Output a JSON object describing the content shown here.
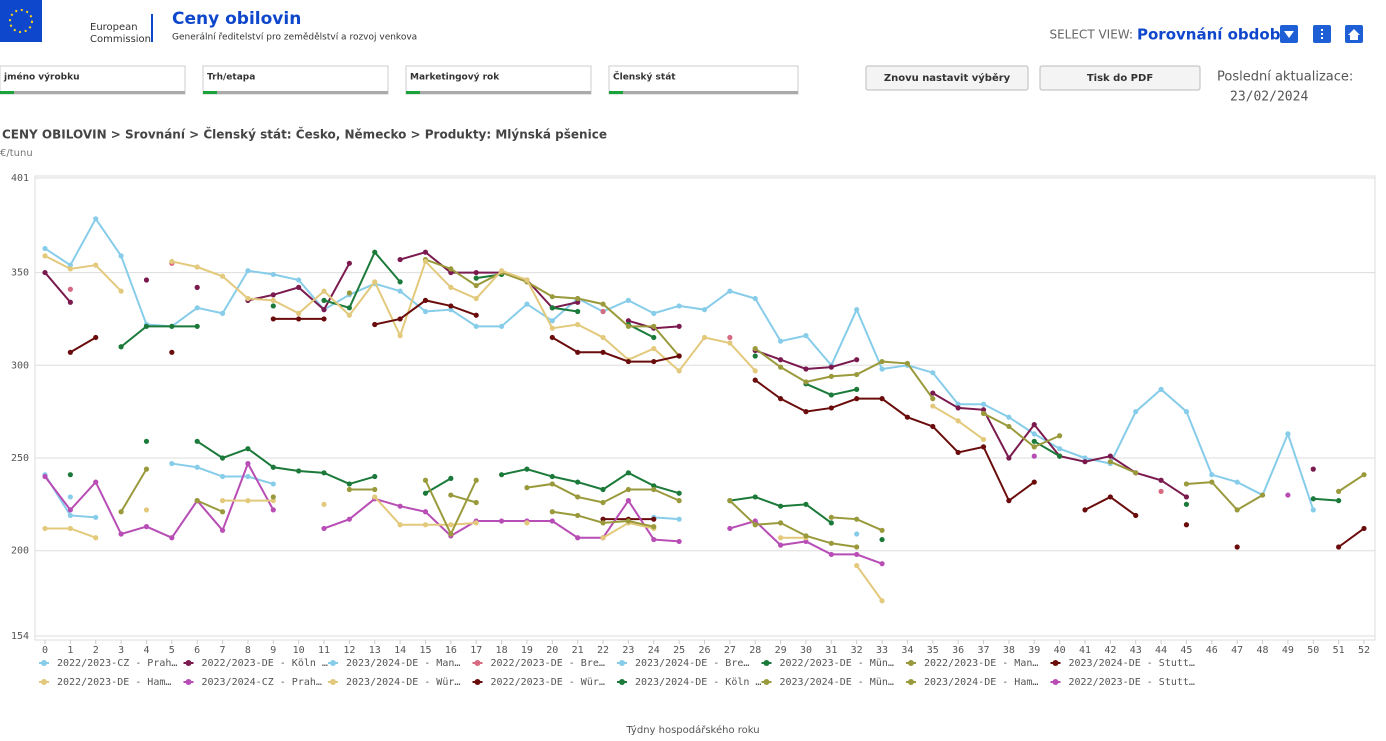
{
  "header": {
    "org_line1": "European",
    "org_line2": "Commission",
    "title": "Ceny obilovin",
    "subtitle": "Generální ředitelství pro zemědělství a rozvoj venkova",
    "select_label": "SELECT VIEW:",
    "select_value": "Porovnání období"
  },
  "filters": [
    "jméno výrobku",
    "Trh/etapa",
    "Marketingový rok",
    "Členský stát"
  ],
  "buttons": {
    "reset": "Znovu nastavit výběry",
    "print": "Tisk do PDF"
  },
  "update": {
    "label": "Poslední aktualizace:",
    "date": "23/02/2024"
  },
  "breadcrumb": "CENY OBILOVIN > Srovnání > Členský stát: Česko, Německo > Produkty: Mlýnská pšenice",
  "unit": "€/tunu",
  "chart_data": {
    "type": "line",
    "x_label": "Týdny hospodářského roku",
    "x": [
      0,
      1,
      2,
      3,
      4,
      5,
      6,
      7,
      8,
      9,
      10,
      11,
      12,
      13,
      14,
      15,
      16,
      17,
      18,
      19,
      20,
      21,
      22,
      23,
      24,
      25,
      26,
      27,
      28,
      29,
      30,
      31,
      32,
      33,
      34,
      35,
      36,
      37,
      38,
      39,
      40,
      41,
      42,
      43,
      44,
      45,
      46,
      47,
      48,
      49,
      50,
      51,
      52
    ],
    "xlim": [
      0,
      52
    ],
    "xticks": [
      0,
      1,
      2,
      3,
      4,
      5,
      6,
      7,
      8,
      9,
      10,
      11,
      12,
      13,
      14,
      15,
      16,
      17,
      18,
      19,
      20,
      21,
      22,
      23,
      24,
      25,
      26,
      27,
      28,
      29,
      30,
      31,
      32,
      33,
      34,
      35,
      36,
      37,
      38,
      39,
      40,
      41,
      42,
      43,
      44,
      45,
      46,
      47,
      48,
      49,
      50,
      51,
      52
    ],
    "ylim": [
      154,
      401
    ],
    "yticks": [
      154,
      200,
      250,
      300,
      350,
      401
    ],
    "grid": true,
    "series": [
      {
        "name": "2022/2023-CZ - Prah…",
        "color": "#87cdea",
        "values": [
          363,
          354,
          379,
          359,
          322,
          321,
          331,
          328,
          351,
          349,
          346,
          330,
          338,
          344,
          340,
          329,
          330,
          321,
          321,
          333,
          324,
          336,
          329,
          335,
          328,
          332,
          330,
          340,
          336,
          313,
          316,
          300,
          330,
          298,
          300,
          296,
          279,
          279,
          272,
          263,
          255,
          250,
          247,
          275,
          287,
          275,
          241,
          237,
          230,
          263,
          222,
          null,
          null
        ]
      },
      {
        "name": "2022/2023-DE - Köln …",
        "color": "#7a1a4e",
        "values": [
          350,
          334,
          null,
          null,
          346,
          null,
          342,
          null,
          335,
          338,
          342,
          330,
          355,
          null,
          357,
          361,
          350,
          350,
          350,
          346,
          331,
          334,
          null,
          324,
          320,
          321,
          null,
          null,
          308,
          303,
          298,
          299,
          303,
          null,
          null,
          285,
          277,
          276,
          250,
          268,
          251,
          248,
          251,
          242,
          238,
          229,
          null,
          null,
          null,
          null,
          244,
          null,
          null
        ]
      },
      {
        "name": "2023/2024-DE - Man…",
        "color": "#87cdea",
        "values": [
          241,
          219,
          218,
          null,
          null,
          247,
          245,
          240,
          240,
          236,
          null,
          null,
          null,
          null,
          null,
          null,
          null,
          null,
          null,
          null,
          null,
          null,
          null,
          null,
          218,
          217,
          null,
          null,
          null,
          null,
          null,
          null,
          209,
          null,
          null,
          null,
          null,
          null,
          null,
          null,
          null,
          null,
          null,
          null,
          null,
          null,
          null,
          null,
          null,
          null,
          null,
          null,
          null
        ]
      },
      {
        "name": "2022/2023-DE - Bre…",
        "color": "#d76a82",
        "values": [
          null,
          341,
          null,
          null,
          null,
          355,
          null,
          null,
          null,
          null,
          null,
          null,
          null,
          null,
          null,
          null,
          null,
          null,
          null,
          null,
          null,
          null,
          329,
          null,
          null,
          null,
          null,
          315,
          null,
          null,
          null,
          null,
          null,
          null,
          null,
          null,
          null,
          null,
          null,
          null,
          null,
          null,
          null,
          null,
          232,
          null,
          null,
          null,
          null,
          null,
          null,
          null,
          null
        ]
      },
      {
        "name": "2023/2024-DE - Bre…",
        "color": "#87cdea",
        "values": [
          null,
          229,
          null,
          null,
          null,
          null,
          null,
          null,
          null,
          null,
          null,
          null,
          null,
          null,
          null,
          null,
          null,
          null,
          null,
          null,
          null,
          null,
          null,
          null,
          null,
          null,
          null,
          null,
          null,
          null,
          null,
          null,
          null,
          null,
          null,
          null,
          null,
          null,
          null,
          null,
          null,
          null,
          null,
          null,
          null,
          null,
          null,
          null,
          null,
          null,
          null,
          null,
          null
        ]
      },
      {
        "name": "2022/2023-DE - Mün…",
        "color": "#1b7a3a",
        "values": [
          null,
          null,
          null,
          310,
          321,
          321,
          321,
          null,
          null,
          332,
          null,
          335,
          331,
          361,
          345,
          null,
          null,
          347,
          349,
          null,
          331,
          329,
          null,
          322,
          315,
          null,
          null,
          null,
          305,
          null,
          290,
          284,
          287,
          null,
          null,
          null,
          null,
          null,
          null,
          259,
          251,
          null,
          null,
          null,
          null,
          225,
          null,
          null,
          null,
          null,
          228,
          227,
          null
        ]
      },
      {
        "name": "2022/2023-DE - Man…",
        "color": "#9a9a3c",
        "values": [
          null,
          null,
          null,
          null,
          null,
          null,
          null,
          null,
          null,
          null,
          null,
          null,
          339,
          null,
          null,
          357,
          352,
          343,
          350,
          345,
          337,
          336,
          333,
          321,
          321,
          305,
          null,
          null,
          309,
          299,
          291,
          294,
          295,
          302,
          301,
          282,
          null,
          274,
          267,
          256,
          262,
          null,
          248,
          242,
          null,
          236,
          237,
          222,
          230,
          null,
          null,
          232,
          241
        ]
      },
      {
        "name": "2023/2024-DE - Stutt…",
        "color": "#6a0c0c",
        "values": [
          null,
          null,
          null,
          null,
          null,
          null,
          null,
          null,
          null,
          null,
          null,
          null,
          null,
          null,
          null,
          null,
          null,
          null,
          null,
          null,
          null,
          null,
          217,
          217,
          217,
          null,
          null,
          null,
          null,
          null,
          null,
          null,
          null,
          null,
          null,
          null,
          null,
          null,
          null,
          null,
          null,
          null,
          null,
          null,
          null,
          null,
          null,
          null,
          null,
          null,
          null,
          null,
          null
        ]
      },
      {
        "name": "2022/2023-DE - Ham…",
        "color": "#e3c97c",
        "values": [
          359,
          352,
          354,
          340,
          null,
          356,
          353,
          348,
          336,
          335,
          328,
          340,
          327,
          345,
          316,
          356,
          342,
          336,
          351,
          346,
          320,
          322,
          315,
          303,
          309,
          297,
          315,
          312,
          297,
          null,
          null,
          null,
          null,
          null,
          null,
          278,
          270,
          260,
          null,
          null,
          null,
          null,
          null,
          null,
          null,
          null,
          null,
          null,
          null,
          null,
          null,
          null,
          null
        ]
      },
      {
        "name": "2023/2024-CZ - Prah…",
        "color": "#b84db5",
        "values": [
          240,
          222,
          237,
          209,
          213,
          207,
          227,
          211,
          247,
          222,
          null,
          212,
          217,
          228,
          224,
          221,
          208,
          216,
          216,
          216,
          216,
          207,
          207,
          227,
          206,
          205,
          null,
          212,
          216,
          203,
          205,
          198,
          198,
          193,
          null,
          null,
          null,
          null,
          null,
          null,
          null,
          null,
          null,
          null,
          null,
          null,
          null,
          null,
          null,
          null,
          null,
          null,
          null
        ]
      },
      {
        "name": "2023/2024-DE - Wür…",
        "color": "#e3c97c",
        "values": [
          212,
          212,
          207,
          null,
          222,
          null,
          null,
          227,
          227,
          227,
          null,
          225,
          null,
          229,
          214,
          214,
          214,
          215,
          null,
          215,
          null,
          null,
          207,
          215,
          212,
          null,
          null,
          null,
          null,
          207,
          207,
          null,
          192,
          173,
          null,
          null,
          null,
          null,
          null,
          null,
          null,
          null,
          null,
          null,
          null,
          null,
          null,
          null,
          null,
          null,
          null,
          null,
          null
        ]
      },
      {
        "name": "2022/2023-DE - Wür…",
        "color": "#6a0c0c",
        "values": [
          null,
          307,
          315,
          null,
          null,
          307,
          null,
          null,
          null,
          325,
          325,
          325,
          null,
          322,
          325,
          335,
          332,
          327,
          null,
          null,
          315,
          307,
          307,
          302,
          302,
          305,
          null,
          null,
          292,
          282,
          275,
          277,
          282,
          282,
          272,
          267,
          253,
          256,
          227,
          237,
          null,
          222,
          229,
          219,
          null,
          214,
          null,
          202,
          null,
          null,
          null,
          202,
          212
        ]
      },
      {
        "name": "2023/2024-DE - Köln …",
        "color": "#1b7a3a",
        "values": [
          null,
          241,
          null,
          null,
          259,
          null,
          259,
          250,
          255,
          245,
          243,
          242,
          236,
          240,
          null,
          231,
          239,
          null,
          241,
          244,
          240,
          237,
          233,
          242,
          235,
          231,
          null,
          227,
          229,
          224,
          225,
          215,
          null,
          206,
          null,
          null,
          null,
          null,
          null,
          null,
          null,
          null,
          null,
          null,
          null,
          null,
          null,
          null,
          null,
          null,
          null,
          null,
          null
        ]
      },
      {
        "name": "2023/2024-DE - Mün…",
        "color": "#9a9a3c",
        "values": [
          null,
          null,
          null,
          221,
          244,
          null,
          227,
          221,
          null,
          229,
          null,
          null,
          233,
          233,
          null,
          238,
          209,
          238,
          null,
          234,
          236,
          229,
          226,
          233,
          233,
          227,
          null,
          null,
          null,
          null,
          null,
          218,
          217,
          211,
          null,
          null,
          null,
          null,
          null,
          null,
          null,
          null,
          null,
          null,
          null,
          null,
          null,
          null,
          null,
          null,
          null,
          null,
          null
        ]
      },
      {
        "name": "2023/2024-DE - Ham…",
        "color": "#9a9a3c",
        "values": [
          null,
          null,
          null,
          null,
          null,
          null,
          null,
          null,
          null,
          null,
          null,
          null,
          null,
          null,
          null,
          null,
          230,
          226,
          null,
          null,
          221,
          219,
          215,
          216,
          213,
          null,
          null,
          227,
          214,
          215,
          208,
          204,
          202,
          null,
          null,
          null,
          null,
          null,
          null,
          null,
          null,
          null,
          null,
          null,
          null,
          null,
          null,
          null,
          null,
          null,
          null,
          null,
          null
        ]
      },
      {
        "name": "2022/2023-DE - Stutt…",
        "color": "#b84db5",
        "values": [
          null,
          null,
          null,
          null,
          null,
          null,
          null,
          null,
          null,
          null,
          null,
          null,
          null,
          null,
          null,
          null,
          null,
          null,
          null,
          null,
          null,
          null,
          null,
          null,
          null,
          null,
          null,
          null,
          null,
          null,
          null,
          null,
          null,
          null,
          null,
          null,
          null,
          null,
          null,
          251,
          null,
          null,
          null,
          null,
          null,
          null,
          null,
          null,
          null,
          230,
          null,
          null,
          null
        ]
      }
    ]
  }
}
